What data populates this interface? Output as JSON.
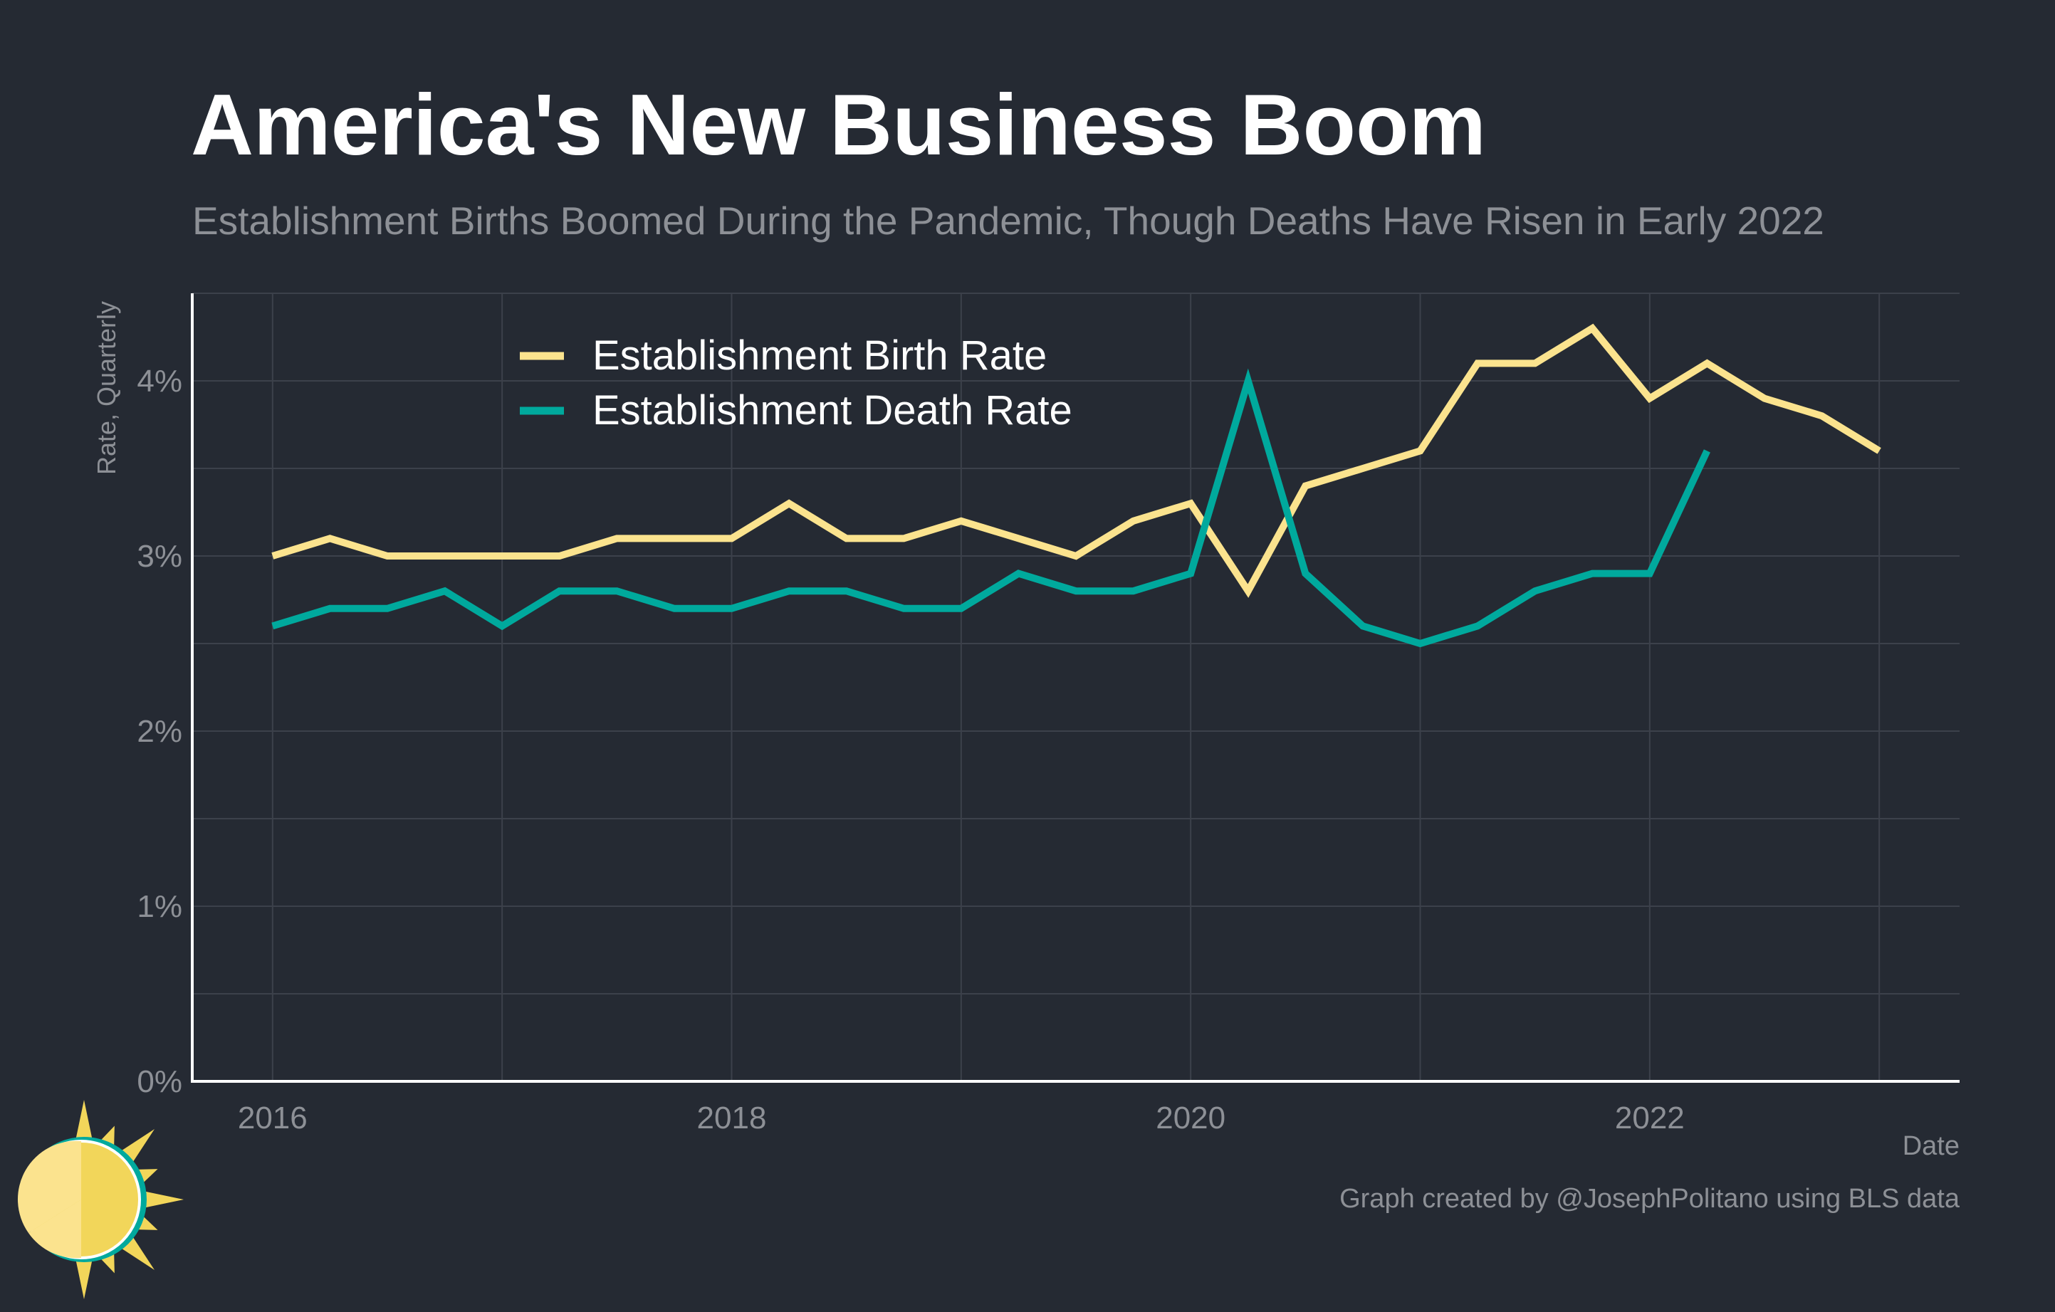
{
  "title": "America's New Business Boom",
  "subtitle": "Establishment Births Boomed During the Pandemic, Though Deaths Have Risen in Early 2022",
  "caption": "Graph created by @JosephPolitano using BLS data",
  "colors": {
    "background": "#252a33",
    "grid": "#3c414b",
    "axis": "#ffffff",
    "text": "#8d9096",
    "birth": "#fbe38e",
    "death": "#00a99d"
  },
  "chart_data": {
    "type": "line",
    "xlabel": "Date",
    "ylabel": "Rate, Quarterly",
    "x_range": [
      2015.65,
      2023.35
    ],
    "ylim": [
      0,
      4.5
    ],
    "x_ticks": [
      {
        "value": 2016,
        "label": "2016"
      },
      {
        "value": 2018,
        "label": "2018"
      },
      {
        "value": 2020,
        "label": "2020"
      },
      {
        "value": 2022,
        "label": "2022"
      }
    ],
    "y_ticks": [
      {
        "value": 0,
        "label": "0%"
      },
      {
        "value": 1,
        "label": "1%"
      },
      {
        "value": 2,
        "label": "2%"
      },
      {
        "value": 3,
        "label": "3%"
      },
      {
        "value": 4,
        "label": "4%"
      }
    ],
    "grid": true,
    "legend_position": "top-left",
    "series": [
      {
        "name": "Establishment Birth Rate",
        "color": "#fbe38e",
        "points": [
          [
            2016.0,
            3.0
          ],
          [
            2016.25,
            3.1
          ],
          [
            2016.5,
            3.0
          ],
          [
            2016.75,
            3.0
          ],
          [
            2017.0,
            3.0
          ],
          [
            2017.25,
            3.0
          ],
          [
            2017.5,
            3.1
          ],
          [
            2017.75,
            3.1
          ],
          [
            2018.0,
            3.1
          ],
          [
            2018.25,
            3.3
          ],
          [
            2018.5,
            3.1
          ],
          [
            2018.75,
            3.1
          ],
          [
            2019.0,
            3.2
          ],
          [
            2019.25,
            3.1
          ],
          [
            2019.5,
            3.0
          ],
          [
            2019.75,
            3.2
          ],
          [
            2020.0,
            3.3
          ],
          [
            2020.25,
            2.8
          ],
          [
            2020.5,
            3.4
          ],
          [
            2020.75,
            3.5
          ],
          [
            2021.0,
            3.6
          ],
          [
            2021.25,
            4.1
          ],
          [
            2021.5,
            4.1
          ],
          [
            2021.75,
            4.3
          ],
          [
            2022.0,
            3.9
          ],
          [
            2022.25,
            4.1
          ],
          [
            2022.5,
            3.9
          ],
          [
            2022.75,
            3.8
          ],
          [
            2023.0,
            3.6
          ]
        ]
      },
      {
        "name": "Establishment Death Rate",
        "color": "#00a99d",
        "points": [
          [
            2016.0,
            2.6
          ],
          [
            2016.25,
            2.7
          ],
          [
            2016.5,
            2.7
          ],
          [
            2016.75,
            2.8
          ],
          [
            2017.0,
            2.6
          ],
          [
            2017.25,
            2.8
          ],
          [
            2017.5,
            2.8
          ],
          [
            2017.75,
            2.7
          ],
          [
            2018.0,
            2.7
          ],
          [
            2018.25,
            2.8
          ],
          [
            2018.5,
            2.8
          ],
          [
            2018.75,
            2.7
          ],
          [
            2019.0,
            2.7
          ],
          [
            2019.25,
            2.9
          ],
          [
            2019.5,
            2.8
          ],
          [
            2019.75,
            2.8
          ],
          [
            2020.0,
            2.9
          ],
          [
            2020.25,
            4.0
          ],
          [
            2020.5,
            2.9
          ],
          [
            2020.75,
            2.6
          ],
          [
            2021.0,
            2.5
          ],
          [
            2021.25,
            2.6
          ],
          [
            2021.5,
            2.8
          ],
          [
            2021.75,
            2.9
          ],
          [
            2022.0,
            2.9
          ],
          [
            2022.25,
            3.6
          ]
        ]
      }
    ]
  }
}
